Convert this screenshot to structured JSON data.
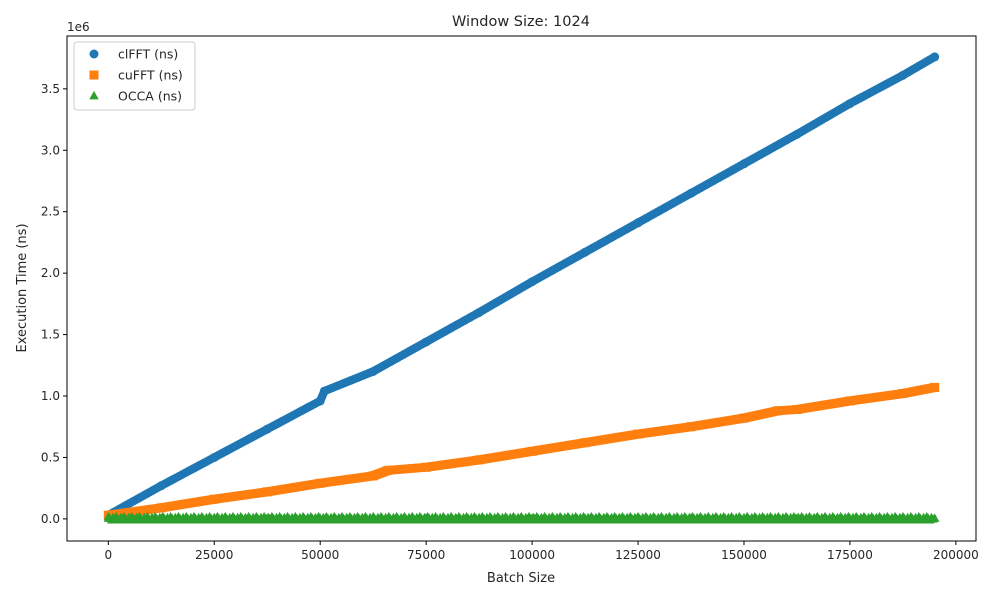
{
  "chart_data": {
    "type": "scatter",
    "title": "Window Size: 1024",
    "xlabel": "Batch Size",
    "ylabel": "Execution Time (ns)",
    "y_offset_label": "1e6",
    "xlim": [
      -9750,
      204750
    ],
    "ylim": [
      -180000,
      3930000
    ],
    "x_ticks": [
      0,
      25000,
      50000,
      75000,
      100000,
      125000,
      150000,
      175000,
      200000
    ],
    "x_tick_labels": [
      "0",
      "25000",
      "50000",
      "75000",
      "100000",
      "125000",
      "150000",
      "175000",
      "200000"
    ],
    "y_ticks": [
      0,
      500000,
      1000000,
      1500000,
      2000000,
      2500000,
      3000000,
      3500000
    ],
    "y_tick_labels": [
      "0.0",
      "0.5",
      "1.0",
      "1.5",
      "2.0",
      "2.5",
      "3.0",
      "3.5"
    ],
    "grid": false,
    "legend_position": "top-left",
    "series": [
      {
        "name": "clFFT (ns)",
        "marker": "circle",
        "color": "#1f77b4",
        "x": [
          0,
          12500,
          25000,
          37500,
          50000,
          51000,
          62500,
          75000,
          87500,
          100000,
          112500,
          125000,
          137500,
          150000,
          162500,
          175000,
          187500,
          195000
        ],
        "y": [
          30000,
          270000,
          500000,
          730000,
          960000,
          1040000,
          1200000,
          1440000,
          1680000,
          1930000,
          2170000,
          2410000,
          2650000,
          2890000,
          3130000,
          3380000,
          3610000,
          3760000
        ]
      },
      {
        "name": "cuFFT (ns)",
        "marker": "square",
        "color": "#ff7f0e",
        "x": [
          0,
          12500,
          25000,
          37500,
          50000,
          62500,
          66000,
          75000,
          87500,
          100000,
          112500,
          125000,
          137500,
          150000,
          158000,
          162500,
          175000,
          187500,
          195000
        ],
        "y": [
          30000,
          90000,
          160000,
          220000,
          290000,
          350000,
          395000,
          420000,
          480000,
          550000,
          620000,
          690000,
          750000,
          820000,
          880000,
          890000,
          960000,
          1020000,
          1070000
        ]
      },
      {
        "name": "OCCA (ns)",
        "marker": "triangle",
        "color": "#2ca02c",
        "x": [
          0,
          12500,
          25000,
          37500,
          50000,
          62500,
          75000,
          87500,
          100000,
          112500,
          125000,
          137500,
          150000,
          162500,
          175000,
          187500,
          195000
        ],
        "y": [
          3000,
          3000,
          3000,
          3000,
          3000,
          3000,
          3000,
          3000,
          3000,
          3000,
          3000,
          3000,
          3000,
          3000,
          3000,
          3000,
          3000
        ]
      }
    ]
  }
}
